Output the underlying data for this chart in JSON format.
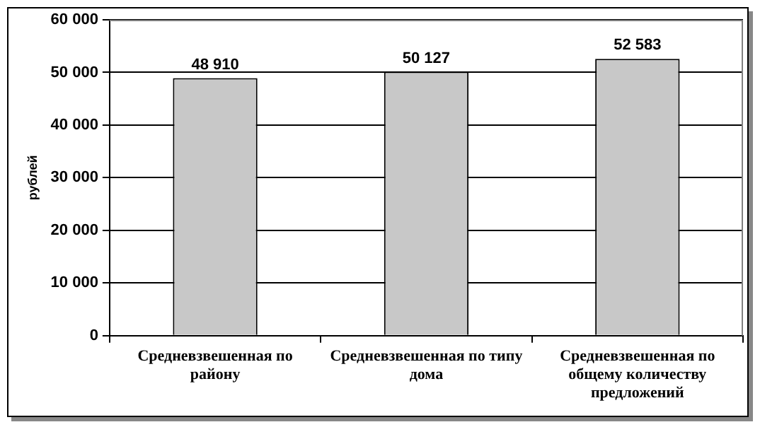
{
  "chart_data": {
    "type": "bar",
    "ylabel": "рублей",
    "categories": [
      "Средневзвешенная по району",
      "Средневзвешенная по типу дома",
      "Средневзвешенная по общему количеству предложений"
    ],
    "values": [
      48910,
      50127,
      52583
    ],
    "color": "#c8c8c8",
    "value_labels": [
      "48 910",
      "50 127",
      "52 583"
    ],
    "ylim": [
      0,
      60000
    ],
    "yticks": [
      {
        "value": 0,
        "label": "0"
      },
      {
        "value": 10000,
        "label": "10 000"
      },
      {
        "value": 20000,
        "label": "20 000"
      },
      {
        "value": 30000,
        "label": "30 000"
      },
      {
        "value": 40000,
        "label": "40 000"
      },
      {
        "value": 50000,
        "label": "50 000"
      },
      {
        "value": 60000,
        "label": "60 000"
      }
    ],
    "grid": "y",
    "legend": false
  }
}
